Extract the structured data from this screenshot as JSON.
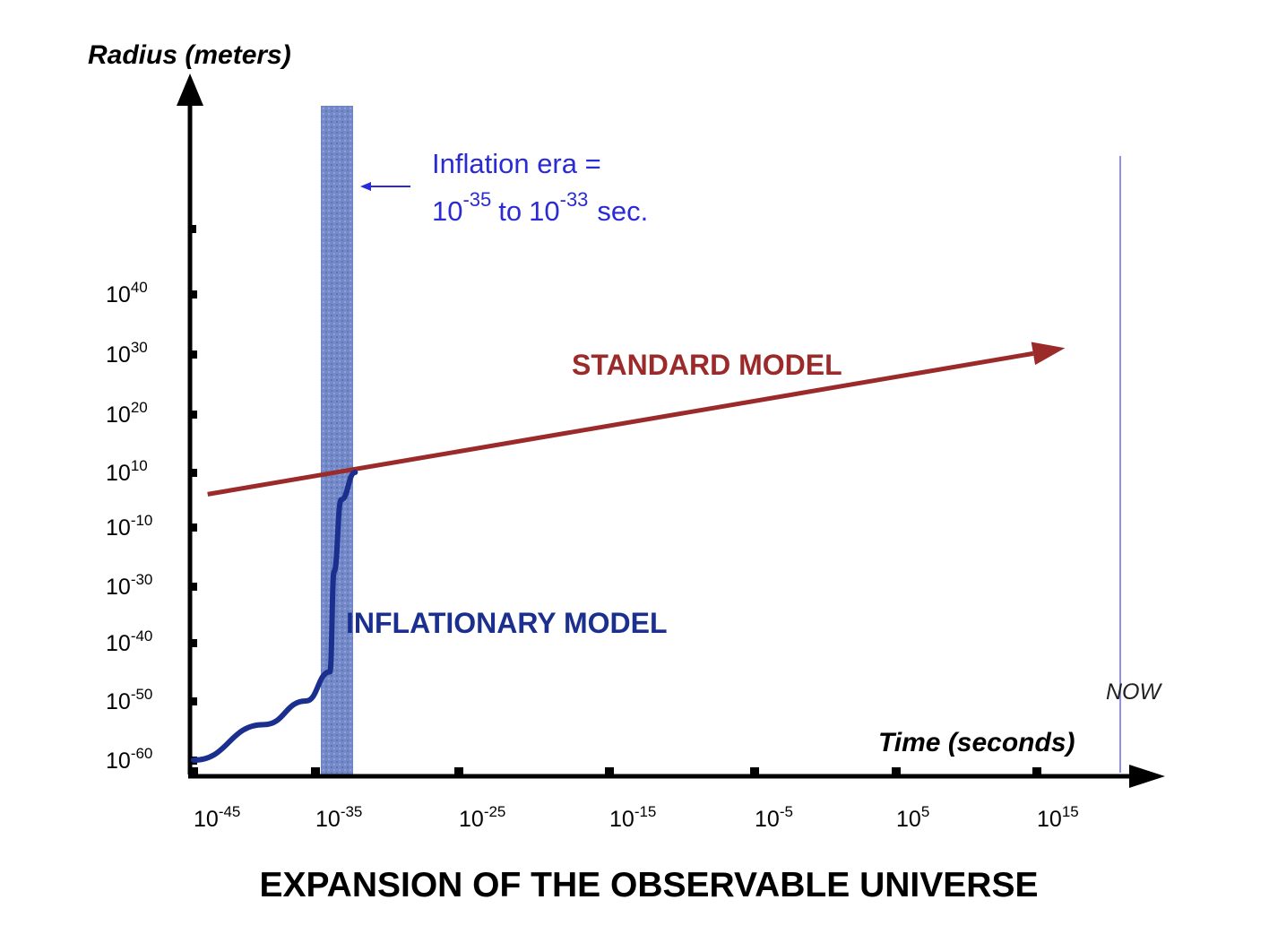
{
  "chart_data": {
    "type": "line",
    "title": "EXPANSION OF THE OBSERVABLE UNIVERSE",
    "xlabel": "Time (seconds)",
    "ylabel": "Radius (meters)",
    "x_scale": "log",
    "y_scale": "log",
    "x_ticks": [
      {
        "base": "10",
        "exp": "-45"
      },
      {
        "base": "10",
        "exp": "-35"
      },
      {
        "base": "10",
        "exp": "-25"
      },
      {
        "base": "10",
        "exp": "-15"
      },
      {
        "base": "10",
        "exp": "-5"
      },
      {
        "base": "10",
        "exp": "5"
      },
      {
        "base": "10",
        "exp": "15"
      }
    ],
    "y_ticks": [
      {
        "base": "10",
        "exp": "-60"
      },
      {
        "base": "10",
        "exp": "-50"
      },
      {
        "base": "10",
        "exp": "-40"
      },
      {
        "base": "10",
        "exp": "-30"
      },
      {
        "base": "10",
        "exp": "-10"
      },
      {
        "base": "10",
        "exp": "10"
      },
      {
        "base": "10",
        "exp": "20"
      },
      {
        "base": "10",
        "exp": "30"
      },
      {
        "base": "10",
        "exp": "40"
      }
    ],
    "series": [
      {
        "name": "STANDARD MODEL",
        "color": "#9b2a2a",
        "points": [
          [
            -44,
            2
          ],
          [
            17,
            31
          ]
        ]
      },
      {
        "name": "INFLATIONARY MODEL",
        "color": "#1b2f8f",
        "points": [
          [
            -45,
            -60
          ],
          [
            -40,
            -54
          ],
          [
            -37,
            -50
          ],
          [
            -35.3,
            -45
          ],
          [
            -35,
            -25
          ],
          [
            -34.5,
            0
          ],
          [
            -33.5,
            10
          ]
        ]
      }
    ],
    "annotations": {
      "inflation_note": {
        "line1": "Inflation era =",
        "base1": "10",
        "exp1": "-35",
        "mid": "to",
        "base2": "10",
        "exp2": "-33",
        "unit": "sec."
      },
      "now_label": "NOW"
    },
    "colors": {
      "standard": "#9b2a2a",
      "inflationary": "#1b2f8f",
      "note": "#2b2bd6",
      "band": "#6f86c4",
      "now_line": "#8f8ff0"
    },
    "grid": false,
    "legend": "none"
  }
}
